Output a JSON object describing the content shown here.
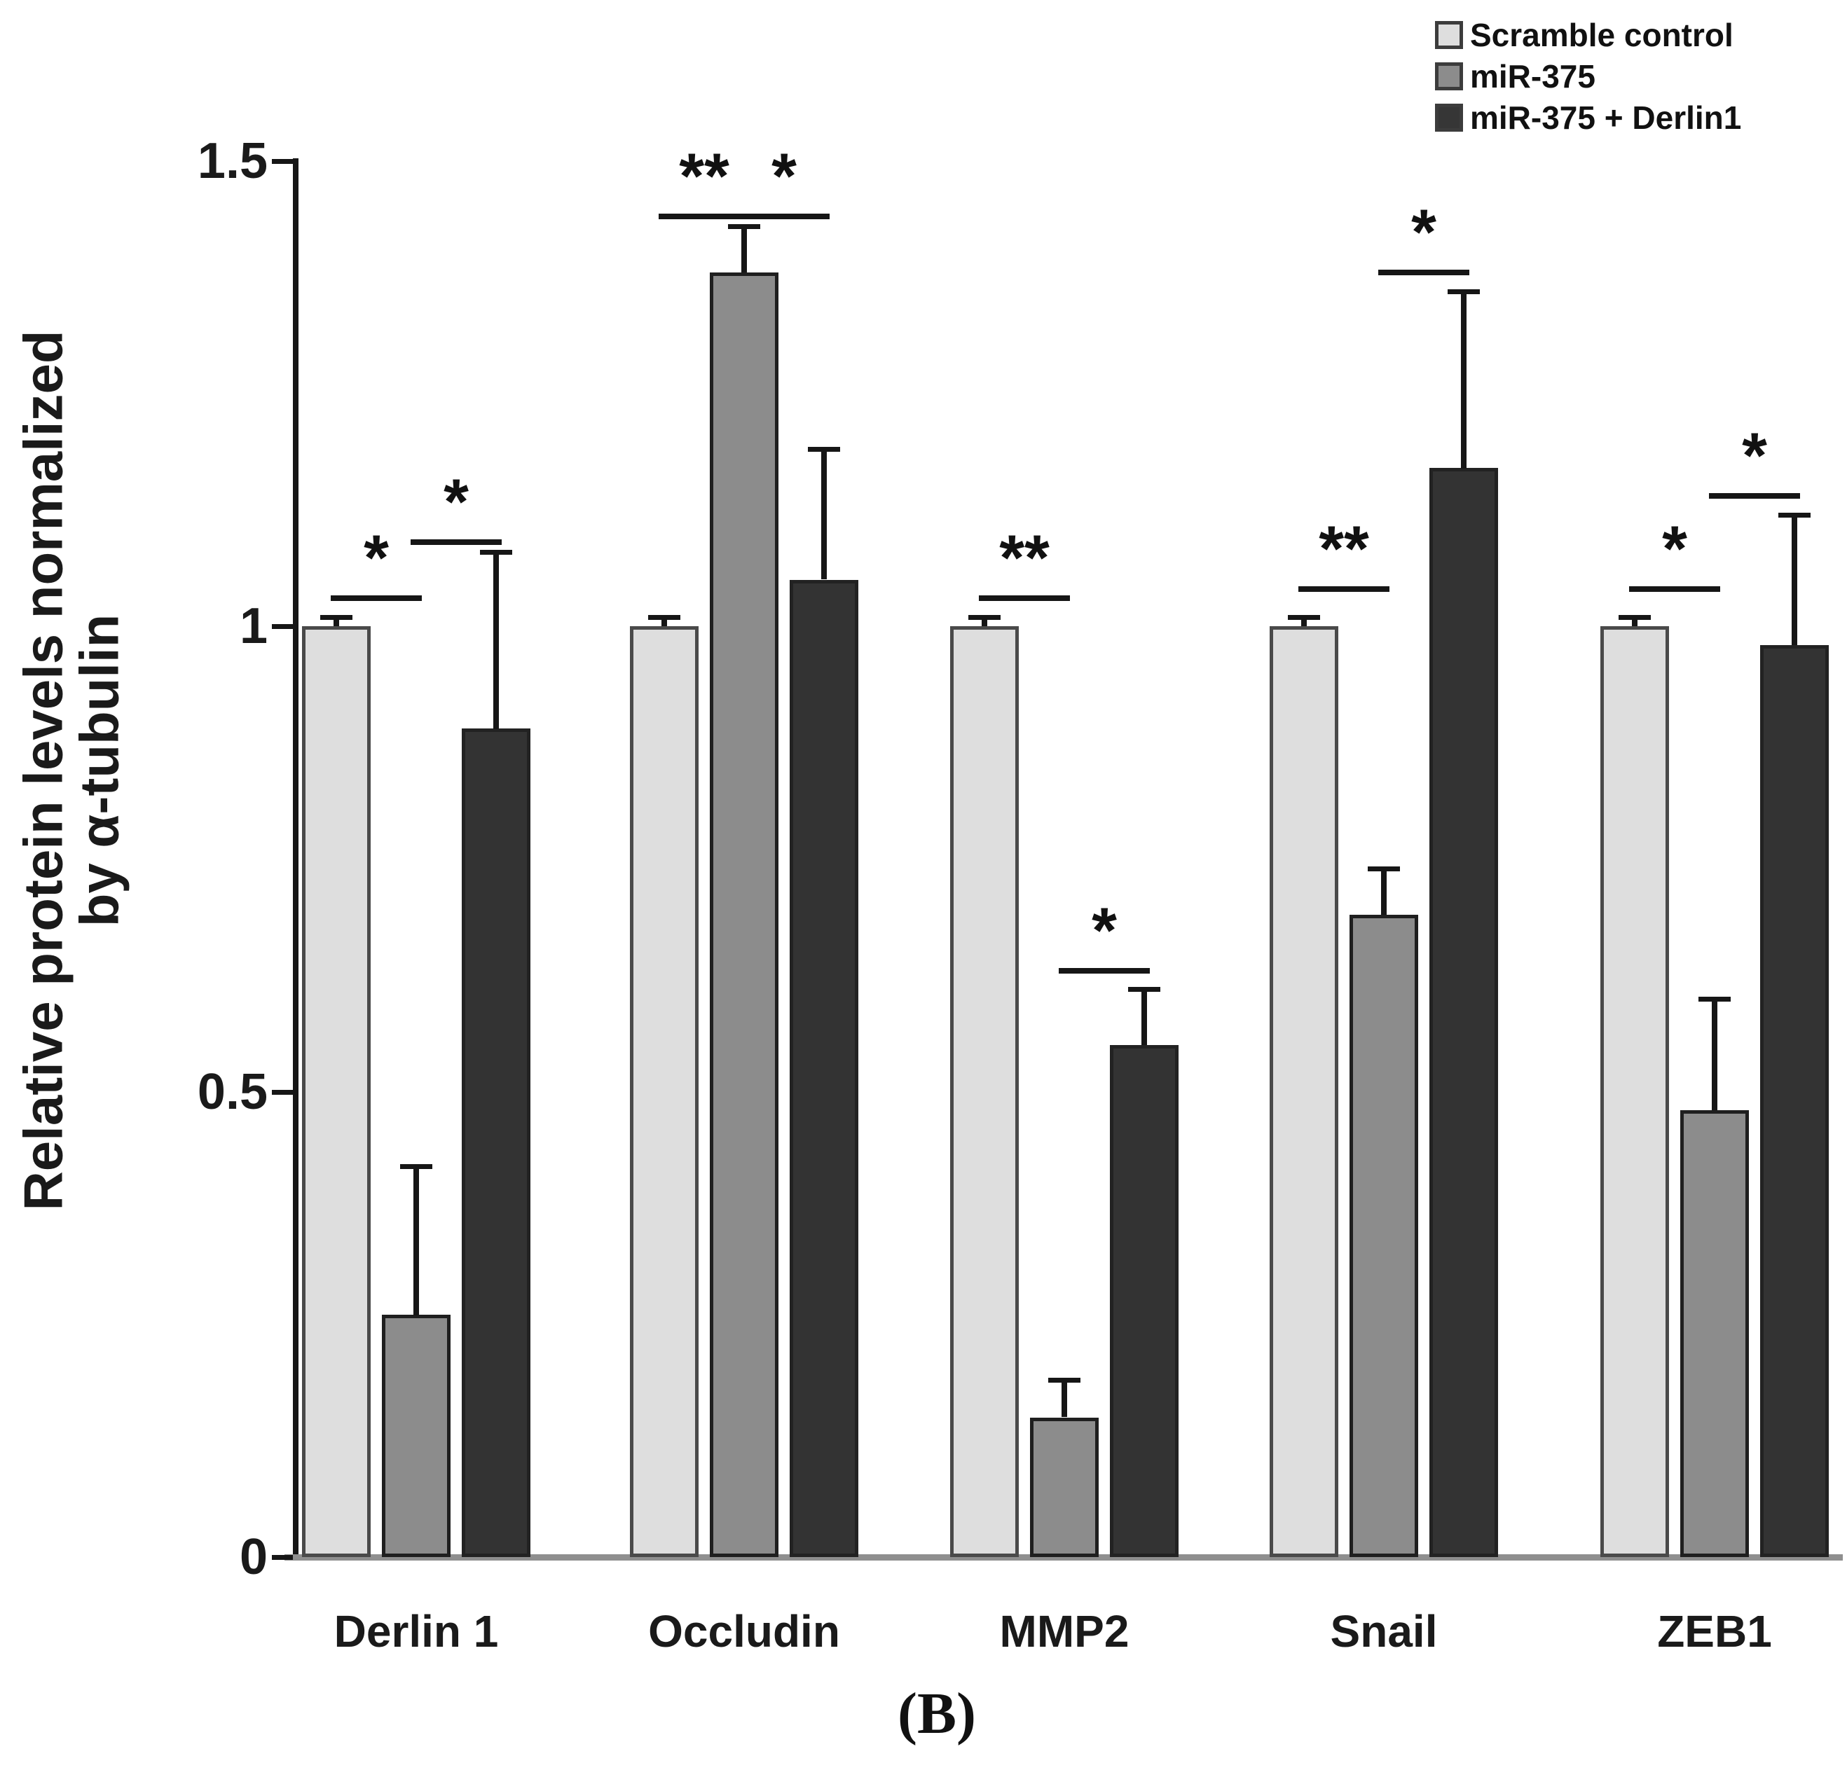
{
  "figure_label": "(B)",
  "y_axis": {
    "label_line1": "Relative protein levels normalized",
    "label_line2": "by α-tubulin",
    "ticks": [
      {
        "value": 0,
        "label": "0"
      },
      {
        "value": 0.5,
        "label": "0.5"
      },
      {
        "value": 1,
        "label": "1"
      },
      {
        "value": 1.5,
        "label": "1.5"
      }
    ]
  },
  "legend": {
    "items": [
      {
        "label": "Scramble control",
        "color": "#dedede"
      },
      {
        "label": "miR-375",
        "color": "#8c8c8c"
      },
      {
        "label": "miR-375 + Derlin1",
        "color": "#363636"
      }
    ]
  },
  "chart_data": {
    "type": "bar",
    "title": "",
    "xlabel": "",
    "ylabel": "Relative protein levels normalized by α-tubulin",
    "ylim": [
      0,
      1.5
    ],
    "grid": false,
    "legend_position": "top-right",
    "categories": [
      "Derlin 1",
      "Occludin",
      "MMP2",
      "Snail",
      "ZEB1"
    ],
    "series": [
      {
        "name": "Scramble control",
        "color": "#dedede",
        "border_color": "#4a4a4a",
        "values": [
          1.0,
          1.0,
          1.0,
          1.0,
          1.0
        ],
        "errors_plus": [
          0.01,
          0.01,
          0.01,
          0.01,
          0.01
        ]
      },
      {
        "name": "miR-375",
        "color": "#8c8c8c",
        "border_color": "#1f1f1f",
        "values": [
          0.26,
          1.38,
          0.15,
          0.69,
          0.48
        ],
        "errors_plus": [
          0.16,
          0.05,
          0.04,
          0.05,
          0.12
        ]
      },
      {
        "name": "miR-375 + Derlin1",
        "color": "#333333",
        "border_color": "#222222",
        "values": [
          0.89,
          1.05,
          0.55,
          1.17,
          0.98
        ],
        "errors_plus": [
          0.19,
          0.14,
          0.06,
          0.19,
          0.14
        ]
      }
    ],
    "significance": [
      {
        "group": 0,
        "between": [
          0,
          1
        ],
        "label": "*",
        "level": 1.03
      },
      {
        "group": 0,
        "between": [
          1,
          2
        ],
        "label": "*",
        "level": 1.09
      },
      {
        "group": 1,
        "between": [
          0,
          1
        ],
        "label": "**",
        "level": 1.44
      },
      {
        "group": 1,
        "between": [
          1,
          2
        ],
        "label": "*",
        "level": 1.44
      },
      {
        "group": 2,
        "between": [
          0,
          1
        ],
        "label": "**",
        "level": 1.03
      },
      {
        "group": 2,
        "between": [
          1,
          2
        ],
        "label": "*",
        "level": 0.63
      },
      {
        "group": 3,
        "between": [
          0,
          1
        ],
        "label": "**",
        "level": 1.04
      },
      {
        "group": 3,
        "between": [
          1,
          2
        ],
        "label": "*",
        "level": 1.38
      },
      {
        "group": 4,
        "between": [
          0,
          1
        ],
        "label": "*",
        "level": 1.04
      },
      {
        "group": 4,
        "between": [
          1,
          2
        ],
        "label": "*",
        "level": 1.14
      }
    ]
  }
}
